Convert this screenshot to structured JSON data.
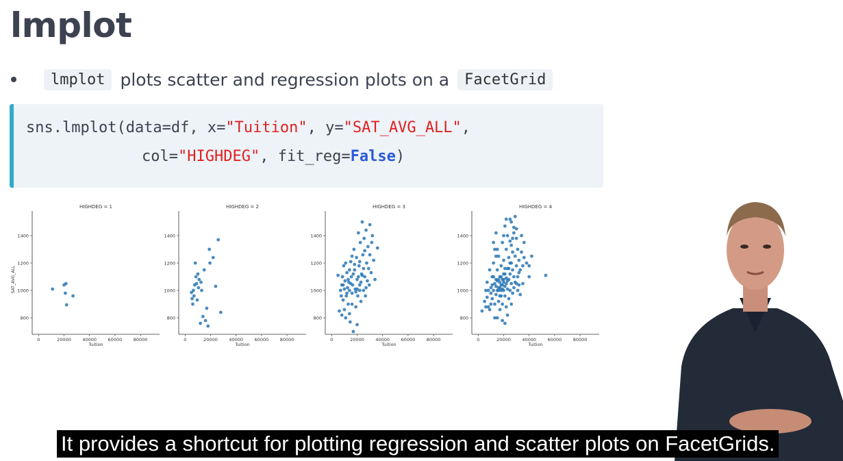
{
  "slide": {
    "title": "lmplot",
    "bullet": {
      "code1": "lmplot",
      "text": "plots scatter and regression plots on a",
      "code2": "FacetGrid"
    },
    "code": {
      "l1_a": "sns.lmplot(data=df, x=",
      "l1_str1": "\"Tuition\"",
      "l1_b": ", y=",
      "l1_str2": "\"SAT_AVG_ALL\"",
      "l1_c": ",",
      "l2_a": "col=",
      "l2_str": "\"HIGHDEG\"",
      "l2_b": ", fit_reg=",
      "l2_kw": "False",
      "l2_c": ")"
    }
  },
  "caption": "It provides a shortcut for plotting regression and scatter plots on FacetGrids.",
  "colors": {
    "point": "#2a77b4",
    "code_border": "#33aacc",
    "string": "#e02020",
    "keyword": "#2a59d6"
  },
  "chart_data": [
    {
      "type": "scatter",
      "title": "HIGHDEG = 1",
      "xlabel": "Tuition",
      "ylabel": "SAT_AVG_ALL",
      "xticks": [
        "0",
        "20000",
        "40000",
        "60000",
        "80000"
      ],
      "yticks": [
        "800",
        "1000",
        "1200",
        "1400"
      ],
      "xlim": [
        -5000,
        95000
      ],
      "ylim": [
        680,
        1580
      ],
      "points": [
        [
          11000,
          1010
        ],
        [
          20000,
          1040
        ],
        [
          21500,
          1050
        ],
        [
          21000,
          980
        ],
        [
          22000,
          895
        ],
        [
          27000,
          960
        ]
      ]
    },
    {
      "type": "scatter",
      "title": "HIGHDEG = 2",
      "xlabel": "Tuition",
      "ylabel": "",
      "xticks": [
        "0",
        "20000",
        "40000",
        "60000",
        "80000"
      ],
      "yticks": [
        "800",
        "1000",
        "1200",
        "1400"
      ],
      "xlim": [
        -5000,
        95000
      ],
      "ylim": [
        680,
        1580
      ],
      "points": [
        [
          5000,
          985
        ],
        [
          5500,
          940
        ],
        [
          6500,
          1000
        ],
        [
          7000,
          960
        ],
        [
          7500,
          1040
        ],
        [
          8000,
          1200
        ],
        [
          8500,
          1100
        ],
        [
          9000,
          1050
        ],
        [
          9500,
          930
        ],
        [
          10000,
          1120
        ],
        [
          10500,
          1020
        ],
        [
          11000,
          1080
        ],
        [
          12000,
          760
        ],
        [
          13000,
          1000
        ],
        [
          14000,
          810
        ],
        [
          15000,
          1150
        ],
        [
          16000,
          780
        ],
        [
          17000,
          870
        ],
        [
          18000,
          740
        ],
        [
          19000,
          1300
        ],
        [
          19500,
          1200
        ],
        [
          22000,
          1240
        ],
        [
          24000,
          1030
        ],
        [
          26000,
          1370
        ],
        [
          28000,
          840
        ],
        [
          6000,
          900
        ],
        [
          12500,
          1060
        ]
      ]
    },
    {
      "type": "scatter",
      "title": "HIGHDEG = 3",
      "xlabel": "Tuition",
      "ylabel": "",
      "xticks": [
        "0",
        "20000",
        "40000",
        "60000",
        "80000"
      ],
      "yticks": [
        "800",
        "1000",
        "1200",
        "1400"
      ],
      "xlim": [
        -5000,
        95000
      ],
      "ylim": [
        680,
        1580
      ],
      "points": [
        [
          5000,
          1110
        ],
        [
          6000,
          850
        ],
        [
          7000,
          1000
        ],
        [
          7500,
          960
        ],
        [
          8000,
          1040
        ],
        [
          8500,
          1100
        ],
        [
          9000,
          930
        ],
        [
          9500,
          1180
        ],
        [
          10000,
          1010
        ],
        [
          10500,
          1070
        ],
        [
          11000,
          800
        ],
        [
          11500,
          960
        ],
        [
          12000,
          1130
        ],
        [
          12500,
          1020
        ],
        [
          13000,
          900
        ],
        [
          13500,
          1060
        ],
        [
          14000,
          1000
        ],
        [
          14500,
          770
        ],
        [
          15000,
          1210
        ],
        [
          15500,
          1100
        ],
        [
          16000,
          980
        ],
        [
          16500,
          1040
        ],
        [
          17000,
          700
        ],
        [
          17500,
          1300
        ],
        [
          18000,
          1150
        ],
        [
          18500,
          1010
        ],
        [
          19000,
          880
        ],
        [
          19500,
          1240
        ],
        [
          20000,
          1080
        ],
        [
          20500,
          960
        ],
        [
          21000,
          1420
        ],
        [
          21500,
          1180
        ],
        [
          22000,
          1040
        ],
        [
          22500,
          1350
        ],
        [
          23000,
          920
        ],
        [
          23500,
          1120
        ],
        [
          24000,
          1500
        ],
        [
          24500,
          1260
        ],
        [
          25000,
          1000
        ],
        [
          25500,
          1380
        ],
        [
          26000,
          1100
        ],
        [
          26500,
          960
        ],
        [
          27000,
          1440
        ],
        [
          27500,
          1200
        ],
        [
          28000,
          1070
        ],
        [
          28500,
          1320
        ],
        [
          29000,
          1160
        ],
        [
          29500,
          1040
        ],
        [
          30000,
          1260
        ],
        [
          31000,
          1130
        ],
        [
          32000,
          1400
        ],
        [
          33000,
          1220
        ],
        [
          34000,
          1080
        ],
        [
          36000,
          1310
        ],
        [
          15000,
          1050
        ],
        [
          17000,
          1120
        ],
        [
          19000,
          990
        ],
        [
          21000,
          1100
        ],
        [
          23000,
          1060
        ],
        [
          12000,
          980
        ],
        [
          14000,
          1150
        ],
        [
          16000,
          900
        ],
        [
          18000,
          1190
        ],
        [
          20000,
          1010
        ],
        [
          22000,
          1210
        ],
        [
          24000,
          1110
        ],
        [
          26000,
          1290
        ],
        [
          10000,
          860
        ],
        [
          11000,
          1200
        ],
        [
          13000,
          1080
        ],
        [
          25000,
          1160
        ],
        [
          27000,
          1020
        ],
        [
          30000,
          1480
        ],
        [
          31500,
          1350
        ],
        [
          20000,
          750
        ],
        [
          14000,
          830
        ],
        [
          9000,
          1040
        ],
        [
          8000,
          820
        ],
        [
          16000,
          1250
        ],
        [
          22000,
          1000
        ]
      ]
    },
    {
      "type": "scatter",
      "title": "HIGHDEG = 4",
      "xlabel": "Tuition",
      "ylabel": "",
      "xticks": [
        "0",
        "20000",
        "40000",
        "60000",
        "80000"
      ],
      "yticks": [
        "800",
        "1000",
        "1200",
        "1400"
      ],
      "xlim": [
        -5000,
        95000
      ],
      "ylim": [
        680,
        1580
      ],
      "points": [
        [
          3000,
          850
        ],
        [
          5000,
          920
        ],
        [
          6000,
          1000
        ],
        [
          7000,
          1060
        ],
        [
          8000,
          880
        ],
        [
          9000,
          1150
        ],
        [
          10000,
          980
        ],
        [
          10000,
          1020
        ],
        [
          11000,
          940
        ],
        [
          11000,
          1100
        ],
        [
          12000,
          1000
        ],
        [
          12000,
          1200
        ],
        [
          13000,
          900
        ],
        [
          13000,
          1050
        ],
        [
          13000,
          1300
        ],
        [
          14000,
          970
        ],
        [
          14000,
          1080
        ],
        [
          14000,
          1420
        ],
        [
          15000,
          800
        ],
        [
          15000,
          1000
        ],
        [
          15000,
          1150
        ],
        [
          16000,
          1020
        ],
        [
          16000,
          1250
        ],
        [
          16000,
          920
        ],
        [
          17000,
          1060
        ],
        [
          17000,
          1100
        ],
        [
          17000,
          860
        ],
        [
          18000,
          1000
        ],
        [
          18000,
          1180
        ],
        [
          18000,
          960
        ],
        [
          19000,
          1040
        ],
        [
          19000,
          1350
        ],
        [
          19000,
          900
        ],
        [
          20000,
          1080
        ],
        [
          20000,
          1000
        ],
        [
          20000,
          1220
        ],
        [
          21000,
          960
        ],
        [
          21000,
          1120
        ],
        [
          21000,
          1470
        ],
        [
          22000,
          1050
        ],
        [
          22000,
          1300
        ],
        [
          22000,
          880
        ],
        [
          23000,
          1010
        ],
        [
          23000,
          1160
        ],
        [
          23000,
          1400
        ],
        [
          24000,
          1080
        ],
        [
          24000,
          1240
        ],
        [
          24000,
          940
        ],
        [
          25000,
          1000
        ],
        [
          25000,
          1360
        ],
        [
          25000,
          1120
        ],
        [
          26000,
          1200
        ],
        [
          26000,
          1050
        ],
        [
          26000,
          1500
        ],
        [
          27000,
          1150
        ],
        [
          27000,
          980
        ],
        [
          27000,
          1280
        ],
        [
          28000,
          1100
        ],
        [
          28000,
          1420
        ],
        [
          28000,
          1020
        ],
        [
          29000,
          1250
        ],
        [
          29000,
          1060
        ],
        [
          30000,
          1180
        ],
        [
          30000,
          1380
        ],
        [
          31000,
          1100
        ],
        [
          31000,
          1300
        ],
        [
          32000,
          1220
        ],
        [
          32000,
          1040
        ],
        [
          33000,
          1150
        ],
        [
          34000,
          1280
        ],
        [
          35000,
          1180
        ],
        [
          36000,
          1240
        ],
        [
          38000,
          1200
        ],
        [
          40000,
          1180
        ],
        [
          53000,
          1110
        ],
        [
          16000,
          1000
        ],
        [
          17000,
          1020
        ],
        [
          18000,
          1040
        ],
        [
          19000,
          1010
        ],
        [
          20000,
          1060
        ],
        [
          21000,
          1030
        ],
        [
          15000,
          1070
        ],
        [
          14000,
          1030
        ],
        [
          22000,
          1090
        ],
        [
          23000,
          1070
        ],
        [
          18000,
          1100
        ],
        [
          19000,
          1080
        ],
        [
          20000,
          1120
        ],
        [
          21000,
          1160
        ],
        [
          17000,
          960
        ],
        [
          16000,
          1080
        ],
        [
          24000,
          1160
        ],
        [
          25000,
          1200
        ],
        [
          12000,
          1100
        ],
        [
          11000,
          1040
        ],
        [
          26000,
          1330
        ],
        [
          27000,
          1380
        ],
        [
          28000,
          1460
        ],
        [
          29000,
          1540
        ],
        [
          30000,
          1450
        ],
        [
          19000,
          780
        ],
        [
          21000,
          760
        ],
        [
          23000,
          820
        ],
        [
          13000,
          800
        ],
        [
          9000,
          860
        ],
        [
          30000,
          1050
        ],
        [
          31000,
          1000
        ],
        [
          33000,
          970
        ],
        [
          26000,
          900
        ],
        [
          15000,
          1300
        ],
        [
          14000,
          1250
        ],
        [
          12000,
          1350
        ],
        [
          10000,
          900
        ],
        [
          8000,
          1000
        ],
        [
          7000,
          950
        ],
        [
          6000,
          880
        ],
        [
          34000,
          1400
        ],
        [
          36000,
          1350
        ],
        [
          35000,
          1050
        ],
        [
          32000,
          1130
        ],
        [
          25000,
          1520
        ],
        [
          22000,
          1520
        ],
        [
          20000,
          1400
        ],
        [
          40000,
          1100
        ],
        [
          42000,
          1250
        ]
      ]
    }
  ]
}
